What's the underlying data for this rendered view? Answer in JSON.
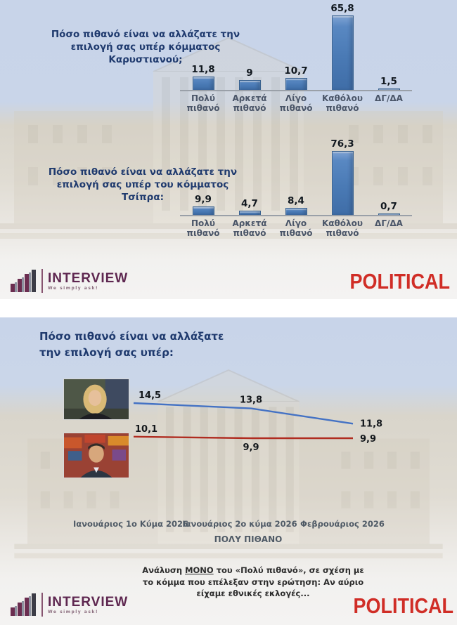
{
  "accent_colors": {
    "bar_blue": "#4a7ab5",
    "title_navy": "#1f3a6e",
    "political_red": "#d02d26",
    "interview_maroon": "#5e2750",
    "line_blue": "#4472c4",
    "line_red": "#b02c20"
  },
  "chart_data": [
    {
      "type": "bar",
      "title": "Πόσο πιθανό είναι να αλλάζατε την επιλογή σας υπέρ κόμματος Καρυστιανού;",
      "title_lines": [
        "Πόσο πιθανό είναι να αλλάζατε την",
        "επιλογή σας υπέρ κόμματος",
        "Καρυστιανού;"
      ],
      "categories": [
        "Πολύ πιθανό",
        "Αρκετά πιθανό",
        "Λίγο πιθανό",
        "Καθόλου πιθανό",
        "ΔΓ/ΔΑ"
      ],
      "values": [
        11.8,
        9,
        10.7,
        65.8,
        1.5
      ],
      "value_labels": [
        "11,8",
        "9",
        "10,7",
        "65,8",
        "1,5"
      ],
      "ylim": [
        0,
        70
      ],
      "grid": false,
      "bar_color": "#4a7ab5"
    },
    {
      "type": "bar",
      "title": "Πόσο πιθανό είναι να αλλάζατε την επιλογή σας υπέρ του κόμματος Τσίπρα:",
      "title_lines": [
        "Πόσο πιθανό είναι να αλλάζατε την",
        "επιλογή σας υπέρ του κόμματος",
        "Τσίπρα:"
      ],
      "categories": [
        "Πολύ πιθανό",
        "Αρκετά πιθανό",
        "Λίγο πιθανό",
        "Καθόλου πιθανό",
        "ΔΓ/ΔΑ"
      ],
      "values": [
        9.9,
        4.7,
        8.4,
        76.3,
        0.7
      ],
      "value_labels": [
        "9,9",
        "4,7",
        "8,4",
        "76,3",
        "0,7"
      ],
      "ylim": [
        0,
        80
      ],
      "grid": false,
      "bar_color": "#4a7ab5"
    },
    {
      "type": "line",
      "title": "Πόσο πιθανό είναι να αλλάξατε την επιλογή σας υπέρ:",
      "title_lines": [
        "Πόσο πιθανό είναι να αλλάξατε",
        "την επιλογή σας υπέρ:"
      ],
      "x_labels": [
        "Ιανουάριος 1ο Κύμα 2026",
        "Ιανουάριος 2ο κύμα 2026",
        "Φεβρουάριος 2026"
      ],
      "x_axis_caption": "ΠΟΛΥ ΠΙΘΑΝΟ",
      "ylim": [
        8,
        16
      ],
      "grid": false,
      "legend": "photo swatches of the two party leaders at line starts",
      "series": [
        {
          "name": "Καρυστιανού",
          "color": "#4472c4",
          "values": [
            14.5,
            13.8,
            11.8
          ],
          "value_labels": [
            "14,5",
            "13,8",
            "11,8"
          ]
        },
        {
          "name": "Τσίπρας",
          "color": "#b02c20",
          "values": [
            10.1,
            9.9,
            9.9
          ],
          "value_labels": [
            "10,1",
            "9,9",
            "9,9"
          ]
        }
      ],
      "footnote": {
        "line1_pre": "Ανάλυση ",
        "line1_strong": "ΜΟΝΟ",
        "line1_post": " του «Πολύ πιθανό», σε σχέση με",
        "line2": "το κόμμα που επέλεξαν στην ερώτηση: Αν αύριο",
        "line3": "είχαμε εθνικές εκλογές..."
      }
    }
  ],
  "logos": {
    "interview": {
      "name": "INTERVIEW",
      "tagline": "We simply ask!"
    },
    "political": {
      "name": "POLITICAL"
    }
  }
}
